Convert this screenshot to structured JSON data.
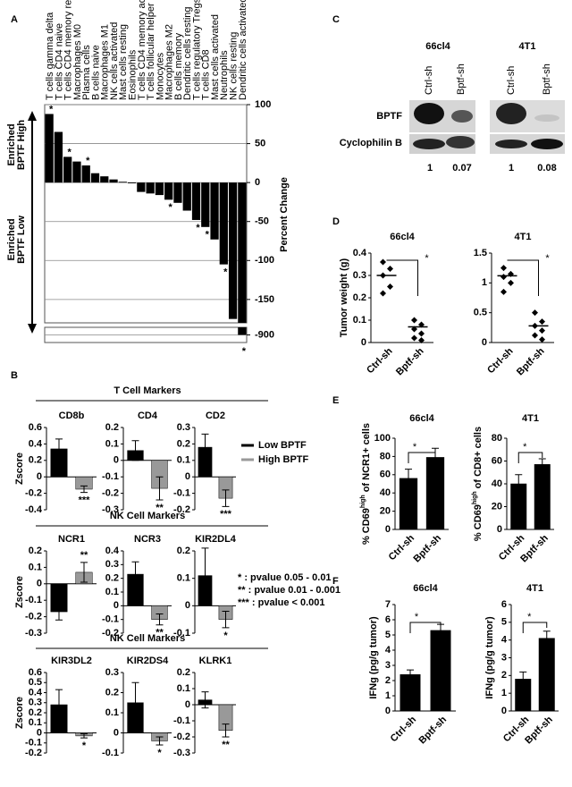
{
  "panel_labels": [
    "A",
    "B",
    "C",
    "D",
    "E",
    "F"
  ],
  "chart_data": [
    {
      "type": "waterfall",
      "ylabel": "Percent Change",
      "side_labels": [
        [
          "Enriched",
          "BPTF High"
        ],
        [
          "Enriched",
          "BPTF Low"
        ]
      ],
      "categories": [
        "T cells gamma delta",
        "T cells CD4 naive",
        "T cells CD4 memory resting",
        "Macrophages M0",
        "Plasma cells",
        "B cells naive",
        "Macrophages M1",
        "NK cells activated",
        "Mast cells resting",
        "Eosinophils",
        "T cells CD4 memory activated",
        "T cells follicular helper",
        "Monocytes",
        "Macrophages M2",
        "B cells memory",
        "Dendritic cells resting",
        "T cells regulatory Tregs",
        "T cells CD8",
        "Mast cells activated",
        "Neutrophils",
        "NK cells resting",
        "Dendritic cells activated"
      ],
      "values": [
        88,
        65,
        33,
        27,
        22,
        12,
        8,
        4,
        1,
        -1,
        -12,
        -14,
        -16,
        -22,
        -26,
        -36,
        -48,
        -57,
        -73,
        -105,
        -175,
        -900
      ],
      "significance": [
        "*",
        null,
        "*",
        null,
        "*",
        null,
        null,
        null,
        null,
        null,
        null,
        null,
        null,
        "*",
        null,
        null,
        "*",
        "*",
        null,
        "*",
        null,
        "*"
      ],
      "color": "#000000",
      "ylim": [
        -180,
        100
      ],
      "yticks": [
        100,
        50,
        0,
        -50,
        -100,
        -150
      ],
      "ylim_lower": [
        -910,
        -890
      ],
      "yticks_lower": [
        -900
      ],
      "grid": true
    },
    {
      "type": "bar",
      "title": "CD8b",
      "ylabel": "Zscore",
      "values": [
        0.34,
        -0.15
      ],
      "errors": [
        0.12,
        0.04
      ],
      "significance": [
        null,
        "***"
      ],
      "ylim": [
        -0.4,
        0.6
      ],
      "yticks": [
        0.6,
        0.4,
        0.2,
        0,
        -0.2,
        -0.4
      ]
    },
    {
      "type": "bar",
      "title": "CD4",
      "values": [
        0.06,
        -0.17
      ],
      "errors": [
        0.06,
        0.07
      ],
      "significance": [
        null,
        "**"
      ],
      "ylim": [
        -0.3,
        0.2
      ],
      "yticks": [
        0.2,
        0.1,
        0,
        -0.1,
        -0.2,
        -0.3
      ]
    },
    {
      "type": "bar",
      "title": "CD2",
      "values": [
        0.18,
        -0.13
      ],
      "errors": [
        0.08,
        0.05
      ],
      "significance": [
        null,
        "***"
      ],
      "ylim": [
        -0.2,
        0.3
      ],
      "yticks": [
        0.3,
        0.2,
        0.1,
        0,
        -0.1,
        -0.2
      ]
    },
    {
      "type": "bar",
      "title": "NCR1",
      "ylabel": "Zscore",
      "values": [
        -0.17,
        0.07
      ],
      "errors": [
        0.05,
        0.06
      ],
      "significance": [
        null,
        "**"
      ],
      "ylim": [
        -0.3,
        0.2
      ],
      "yticks": [
        0.2,
        0.1,
        0,
        -0.1,
        -0.2,
        -0.3
      ]
    },
    {
      "type": "bar",
      "title": "NCR3",
      "values": [
        0.23,
        -0.1
      ],
      "errors": [
        0.09,
        0.04
      ],
      "significance": [
        null,
        "**"
      ],
      "ylim": [
        -0.2,
        0.4
      ],
      "yticks": [
        0.4,
        0.3,
        0.2,
        0.1,
        0,
        -0.1,
        -0.2
      ]
    },
    {
      "type": "bar",
      "title": "KIR2DL4",
      "values": [
        0.11,
        -0.05
      ],
      "errors": [
        0.1,
        0.03
      ],
      "significance": [
        null,
        "*"
      ],
      "ylim": [
        -0.1,
        0.2
      ],
      "yticks": [
        0.2,
        0.1,
        0,
        -0.1
      ]
    },
    {
      "type": "bar",
      "title": "KIR3DL2",
      "ylabel": "Zscore",
      "values": [
        0.28,
        -0.03
      ],
      "errors": [
        0.15,
        0.02
      ],
      "significance": [
        null,
        "*"
      ],
      "ylim": [
        -0.2,
        0.6
      ],
      "yticks": [
        0.6,
        0.5,
        0.4,
        0.3,
        0.2,
        0.1,
        0,
        -0.1,
        -0.2
      ]
    },
    {
      "type": "bar",
      "title": "KIR2DS4",
      "values": [
        0.15,
        -0.04
      ],
      "errors": [
        0.1,
        0.02
      ],
      "significance": [
        null,
        "*"
      ],
      "ylim": [
        -0.1,
        0.3
      ],
      "yticks": [
        0.3,
        0.2,
        0.1,
        0,
        -0.1
      ]
    },
    {
      "type": "bar",
      "title": "KLRK1",
      "values": [
        0.03,
        -0.16
      ],
      "errors": [
        0.05,
        0.04
      ],
      "significance": [
        null,
        "**"
      ],
      "ylim": [
        -0.3,
        0.2
      ],
      "yticks": [
        0.2,
        0.1,
        0,
        -0.1,
        -0.2,
        -0.3
      ]
    },
    {
      "type": "strip",
      "title": "66cl4",
      "ylabel": "Tumor weight (g)",
      "categories": [
        "Ctrl-sh",
        "Bptf-sh"
      ],
      "points": [
        [
          0.36,
          0.33,
          0.3,
          0.25,
          0.22
        ],
        [
          0.1,
          0.08,
          0.06,
          0.04,
          0.02,
          0.01
        ]
      ],
      "means": [
        0.3,
        0.07
      ],
      "annotation": "*",
      "ylim": [
        0,
        0.4
      ],
      "yticks": [
        0,
        0.1,
        0.2,
        0.3,
        0.4
      ]
    },
    {
      "type": "strip",
      "title": "4T1",
      "categories": [
        "Ctrl-sh",
        "Bptf-sh"
      ],
      "points": [
        [
          1.25,
          1.15,
          1.1,
          1.0,
          0.85
        ],
        [
          0.5,
          0.35,
          0.28,
          0.2,
          0.12,
          0.05
        ]
      ],
      "means": [
        1.12,
        0.28
      ],
      "annotation": "*",
      "ylim": [
        0,
        1.5
      ],
      "yticks": [
        0,
        0.5,
        1,
        1.5
      ]
    },
    {
      "type": "bar",
      "title": "66cl4",
      "ylabel": "% CD69",
      "ylabel_sup": "high",
      "ylabel_rest": "of NCR1+ cells",
      "categories": [
        "Ctrl-sh",
        "Bptf-sh"
      ],
      "values": [
        56,
        79
      ],
      "errors": [
        10,
        10
      ],
      "annotation": "*",
      "color": "#000000",
      "ylim": [
        0,
        100
      ],
      "yticks": [
        0,
        20,
        40,
        60,
        80,
        100
      ]
    },
    {
      "type": "bar",
      "title": "4T1",
      "ylabel": "% CD69",
      "ylabel_sup": "high",
      "ylabel_rest": "of CD8+ cells",
      "categories": [
        "Ctrl-sh",
        "Bptf-sh"
      ],
      "values": [
        40,
        57
      ],
      "errors": [
        8,
        5
      ],
      "annotation": "*",
      "color": "#000000",
      "ylim": [
        0,
        80
      ],
      "yticks": [
        0,
        20,
        40,
        60,
        80
      ]
    },
    {
      "type": "bar",
      "title": "66cl4",
      "ylabel": "IFNg (pg/g tumor)",
      "categories": [
        "Ctrl-sh",
        "Bptf-sh"
      ],
      "values": [
        2.4,
        5.3
      ],
      "errors": [
        0.3,
        0.4
      ],
      "annotation": "*",
      "color": "#000000",
      "ylim": [
        0,
        7
      ],
      "yticks": [
        0,
        1,
        2,
        3,
        4,
        5,
        6,
        7
      ]
    },
    {
      "type": "bar",
      "title": "4T1",
      "ylabel": "IFNg (pg/g tumor)",
      "categories": [
        "Ctrl-sh",
        "Bptf-sh"
      ],
      "values": [
        1.8,
        4.1
      ],
      "errors": [
        0.4,
        0.4
      ],
      "annotation": "*",
      "color": "#000000",
      "ylim": [
        0,
        6
      ],
      "yticks": [
        0,
        1,
        2,
        3,
        4,
        5,
        6
      ]
    }
  ],
  "panel_b": {
    "group_titles": [
      "T Cell Markers",
      "NK Cell Markers",
      "NK Cell Markers"
    ],
    "legend": [
      {
        "name": "Low BPTF",
        "color": "#000000"
      },
      {
        "name": "High BPTF",
        "color": "#999999"
      }
    ],
    "notes": [
      "* : pvalue 0.05 - 0.01",
      "** : pvalue 0.01 - 0.001",
      "*** : pvalue < 0.001"
    ]
  },
  "blot": {
    "cell_lines": [
      "66cl4",
      "4T1"
    ],
    "lanes": [
      "Ctrl-sh",
      "Bptf-sh",
      "Ctrl-sh",
      "Bptf-sh"
    ],
    "rows": [
      "BPTF",
      "Cyclophilin B"
    ],
    "quantification": [
      1,
      0.07,
      1,
      0.08
    ]
  }
}
